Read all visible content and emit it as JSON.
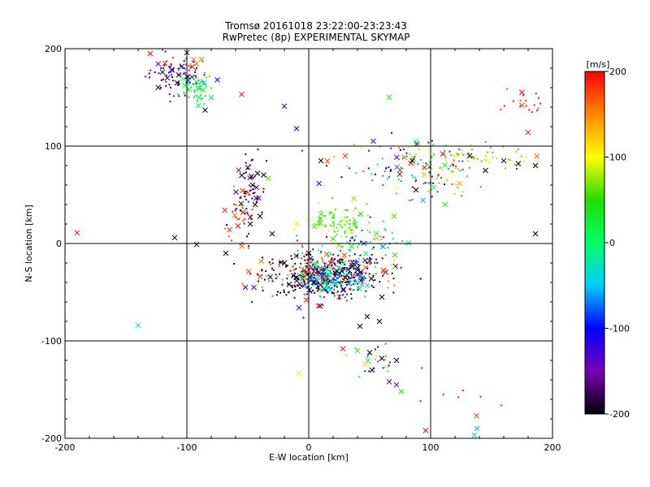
{
  "chart_data": {
    "type": "scatter",
    "title": "Tromsø 20161018 23:22:00-23:23:43",
    "subtitle": "RwPretec (8p) EXPERIMENTAL SKYMAP",
    "xlabel": "E-W location [km]",
    "ylabel": "N-S location [km]",
    "xlim": [
      -200,
      200
    ],
    "ylim": [
      -200,
      200
    ],
    "xticks": [
      -200,
      -100,
      0,
      100,
      200
    ],
    "yticks": [
      -200,
      -100,
      0,
      100,
      200
    ],
    "grid": true,
    "colorbar": {
      "label": "[m/s]",
      "range": [
        -200,
        200
      ],
      "ticks": [
        200,
        100,
        0,
        -100,
        -200
      ],
      "colormap": [
        "#000000",
        "#7a00b4",
        "#0000ff",
        "#00ccff",
        "#00ff66",
        "#22dd00",
        "#ffff00",
        "#ff8800",
        "#ff0000"
      ]
    },
    "points": [
      {
        "x": -120,
        "y": 176,
        "v": -200,
        "m": "x"
      },
      {
        "x": -116,
        "y": 170,
        "v": -180,
        "m": "x"
      },
      {
        "x": -112,
        "y": 178,
        "v": -150,
        "m": "x"
      },
      {
        "x": -108,
        "y": 165,
        "v": -200,
        "m": "x"
      },
      {
        "x": -118,
        "y": 185,
        "v": 180,
        "m": "x"
      },
      {
        "x": -104,
        "y": 182,
        "v": -120,
        "m": "x"
      },
      {
        "x": -98,
        "y": 158,
        "v": 10,
        "m": "x"
      },
      {
        "x": -92,
        "y": 166,
        "v": 30,
        "m": "x"
      },
      {
        "x": -90,
        "y": 150,
        "v": 0,
        "m": "x"
      },
      {
        "x": -86,
        "y": 165,
        "v": -40,
        "m": "x"
      },
      {
        "x": -100,
        "y": 196,
        "v": -200,
        "m": "x"
      },
      {
        "x": -130,
        "y": 195,
        "v": 200,
        "m": "x"
      },
      {
        "x": -85,
        "y": 137,
        "v": -200,
        "m": "x"
      },
      {
        "x": -75,
        "y": 168,
        "v": -100,
        "m": "x"
      },
      {
        "x": -55,
        "y": 153,
        "v": 190,
        "m": "x"
      },
      {
        "x": -20,
        "y": 141,
        "v": -100,
        "m": "x"
      },
      {
        "x": -10,
        "y": 118,
        "v": -110,
        "m": "x"
      },
      {
        "x": 66,
        "y": 150,
        "v": 30,
        "m": "x"
      },
      {
        "x": 175,
        "y": 142,
        "v": 180,
        "m": "x"
      },
      {
        "x": 180,
        "y": 114,
        "v": 200,
        "m": "x"
      },
      {
        "x": 53,
        "y": 105,
        "v": -90,
        "m": "x"
      },
      {
        "x": 10,
        "y": 85,
        "v": -200,
        "m": "x"
      },
      {
        "x": 30,
        "y": 90,
        "v": 180,
        "m": "x"
      },
      {
        "x": 85,
        "y": 85,
        "v": -200,
        "m": "x"
      },
      {
        "x": 95,
        "y": 78,
        "v": 190,
        "m": "x"
      },
      {
        "x": 110,
        "y": 92,
        "v": 200,
        "m": "x"
      },
      {
        "x": 132,
        "y": 90,
        "v": -200,
        "m": "x"
      },
      {
        "x": 145,
        "y": 75,
        "v": -200,
        "m": "x"
      },
      {
        "x": 160,
        "y": 85,
        "v": -180,
        "m": "x"
      },
      {
        "x": 172,
        "y": 82,
        "v": -200,
        "m": "x"
      },
      {
        "x": 186,
        "y": 80,
        "v": -200,
        "m": "x"
      },
      {
        "x": 112,
        "y": 40,
        "v": 30,
        "m": "x"
      },
      {
        "x": 88,
        "y": 55,
        "v": -200,
        "m": "x"
      },
      {
        "x": 75,
        "y": 75,
        "v": 180,
        "m": "x"
      },
      {
        "x": 70,
        "y": 28,
        "v": 60,
        "m": "x"
      },
      {
        "x": 186,
        "y": 10,
        "v": -200,
        "m": "x"
      },
      {
        "x": -55,
        "y": 70,
        "v": -200,
        "m": "x"
      },
      {
        "x": -50,
        "y": 78,
        "v": -180,
        "m": "x"
      },
      {
        "x": -46,
        "y": 60,
        "v": -200,
        "m": "x"
      },
      {
        "x": -42,
        "y": 72,
        "v": -200,
        "m": "x"
      },
      {
        "x": -50,
        "y": 52,
        "v": 180,
        "m": "x"
      },
      {
        "x": -44,
        "y": 40,
        "v": -200,
        "m": "x"
      },
      {
        "x": -54,
        "y": 32,
        "v": 190,
        "m": "x"
      },
      {
        "x": -40,
        "y": 28,
        "v": -200,
        "m": "x"
      },
      {
        "x": -58,
        "y": 18,
        "v": 200,
        "m": "x"
      },
      {
        "x": -65,
        "y": 14,
        "v": 190,
        "m": "x"
      },
      {
        "x": -48,
        "y": 20,
        "v": -200,
        "m": "x"
      },
      {
        "x": -30,
        "y": 10,
        "v": -200,
        "m": "x"
      },
      {
        "x": -33,
        "y": 67,
        "v": 60,
        "m": "x"
      },
      {
        "x": -190,
        "y": 11,
        "v": 200,
        "m": "x"
      },
      {
        "x": -110,
        "y": 6,
        "v": -200,
        "m": "x"
      },
      {
        "x": -92,
        "y": -1,
        "v": -200,
        "m": "x"
      },
      {
        "x": -68,
        "y": -10,
        "v": -200,
        "m": "x"
      },
      {
        "x": -10,
        "y": -35,
        "v": -200,
        "m": "x"
      },
      {
        "x": -4,
        "y": -28,
        "v": 180,
        "m": "x"
      },
      {
        "x": 4,
        "y": -40,
        "v": -200,
        "m": "x"
      },
      {
        "x": 10,
        "y": -32,
        "v": -150,
        "m": "x"
      },
      {
        "x": 16,
        "y": -45,
        "v": -60,
        "m": "x"
      },
      {
        "x": -16,
        "y": -42,
        "v": -200,
        "m": "x"
      },
      {
        "x": -2,
        "y": -58,
        "v": 190,
        "m": "x"
      },
      {
        "x": 8,
        "y": -64,
        "v": 200,
        "m": "x"
      },
      {
        "x": -8,
        "y": -66,
        "v": -110,
        "m": "x"
      },
      {
        "x": 25,
        "y": -55,
        "v": 180,
        "m": "x"
      },
      {
        "x": 30,
        "y": -35,
        "v": -200,
        "m": "x"
      },
      {
        "x": 40,
        "y": -25,
        "v": -200,
        "m": "x"
      },
      {
        "x": 50,
        "y": -18,
        "v": -180,
        "m": "x"
      },
      {
        "x": -45,
        "y": -45,
        "v": -120,
        "m": "x"
      },
      {
        "x": -20,
        "y": -20,
        "v": -200,
        "m": "x"
      },
      {
        "x": 0,
        "y": -10,
        "v": -200,
        "m": "x"
      },
      {
        "x": 18,
        "y": -20,
        "v": 200,
        "m": "x"
      },
      {
        "x": 60,
        "y": -55,
        "v": -200,
        "m": "x"
      },
      {
        "x": 48,
        "y": -75,
        "v": -200,
        "m": "x"
      },
      {
        "x": 58,
        "y": -80,
        "v": -200,
        "m": "x"
      },
      {
        "x": 42,
        "y": -85,
        "v": -200,
        "m": "x"
      },
      {
        "x": 28,
        "y": -108,
        "v": 190,
        "m": "x"
      },
      {
        "x": 40,
        "y": -110,
        "v": 60,
        "m": "x"
      },
      {
        "x": 50,
        "y": -112,
        "v": -200,
        "m": "x"
      },
      {
        "x": 60,
        "y": -118,
        "v": -200,
        "m": "x"
      },
      {
        "x": 72,
        "y": -120,
        "v": -200,
        "m": "x"
      },
      {
        "x": 52,
        "y": -130,
        "v": -200,
        "m": "x"
      },
      {
        "x": 66,
        "y": -142,
        "v": -160,
        "m": "x"
      },
      {
        "x": 72,
        "y": -145,
        "v": -150,
        "m": "x"
      },
      {
        "x": 76,
        "y": -152,
        "v": 40,
        "m": "x"
      },
      {
        "x": -140,
        "y": -84,
        "v": -40,
        "m": "x"
      },
      {
        "x": -8,
        "y": -133,
        "v": 110,
        "m": "x"
      },
      {
        "x": 96,
        "y": -192,
        "v": 200,
        "m": "x"
      },
      {
        "x": 138,
        "y": -190,
        "v": -60,
        "m": "x"
      },
      {
        "x": 136,
        "y": -197,
        "v": -40,
        "m": "x"
      },
      {
        "x": 38,
        "y": 20,
        "v": 30,
        "m": "x"
      },
      {
        "x": 20,
        "y": 5,
        "v": 40,
        "m": "x"
      }
    ],
    "clusters": [
      {
        "cx": -110,
        "cy": 172,
        "sx": 12,
        "sy": 10,
        "n": 70,
        "vmin": -200,
        "vmax": -80
      },
      {
        "cx": -92,
        "cy": 160,
        "sx": 7,
        "sy": 8,
        "n": 55,
        "vmin": -10,
        "vmax": 40
      },
      {
        "cx": -97,
        "cy": 185,
        "sx": 8,
        "sy": 5,
        "n": 12,
        "vmin": 150,
        "vmax": 200
      },
      {
        "cx": -47,
        "cy": 50,
        "sx": 6,
        "sy": 20,
        "n": 60,
        "vmin": -200,
        "vmax": -150
      },
      {
        "cx": -58,
        "cy": 25,
        "sx": 6,
        "sy": 15,
        "n": 25,
        "vmin": 160,
        "vmax": 200
      },
      {
        "cx": 10,
        "cy": -32,
        "sx": 25,
        "sy": 11,
        "n": 330,
        "vmin": -200,
        "vmax": -170
      },
      {
        "cx": 18,
        "cy": -35,
        "sx": 14,
        "sy": 9,
        "n": 170,
        "vmin": -100,
        "vmax": 20
      },
      {
        "cx": 5,
        "cy": -30,
        "sx": 25,
        "sy": 12,
        "n": 80,
        "vmin": 150,
        "vmax": 200
      },
      {
        "cx": 25,
        "cy": 20,
        "sx": 14,
        "sy": 9,
        "n": 90,
        "vmin": 20,
        "vmax": 110
      },
      {
        "cx": 35,
        "cy": 0,
        "sx": 18,
        "sy": 8,
        "n": 40,
        "vmin": -60,
        "vmax": 40
      },
      {
        "cx": 85,
        "cy": 80,
        "sx": 30,
        "sy": 12,
        "n": 110,
        "vmin": -200,
        "vmax": 200
      },
      {
        "cx": 135,
        "cy": 90,
        "sx": 25,
        "sy": 5,
        "n": 55,
        "vmin": 20,
        "vmax": 200
      },
      {
        "cx": 50,
        "cy": -5,
        "sx": 20,
        "sy": 20,
        "n": 45,
        "vmin": -200,
        "vmax": 200
      },
      {
        "cx": 55,
        "cy": -120,
        "sx": 12,
        "sy": 10,
        "n": 25,
        "vmin": -200,
        "vmax": 200
      },
      {
        "cx": 178,
        "cy": 145,
        "sx": 8,
        "sy": 7,
        "n": 18,
        "vmin": 170,
        "vmax": 200
      },
      {
        "cx": 135,
        "cy": -160,
        "sx": 20,
        "sy": 15,
        "n": 8,
        "vmin": 180,
        "vmax": 200
      },
      {
        "cx": 105,
        "cy": 60,
        "sx": 12,
        "sy": 10,
        "n": 30,
        "vmin": -200,
        "vmax": 200
      }
    ]
  }
}
